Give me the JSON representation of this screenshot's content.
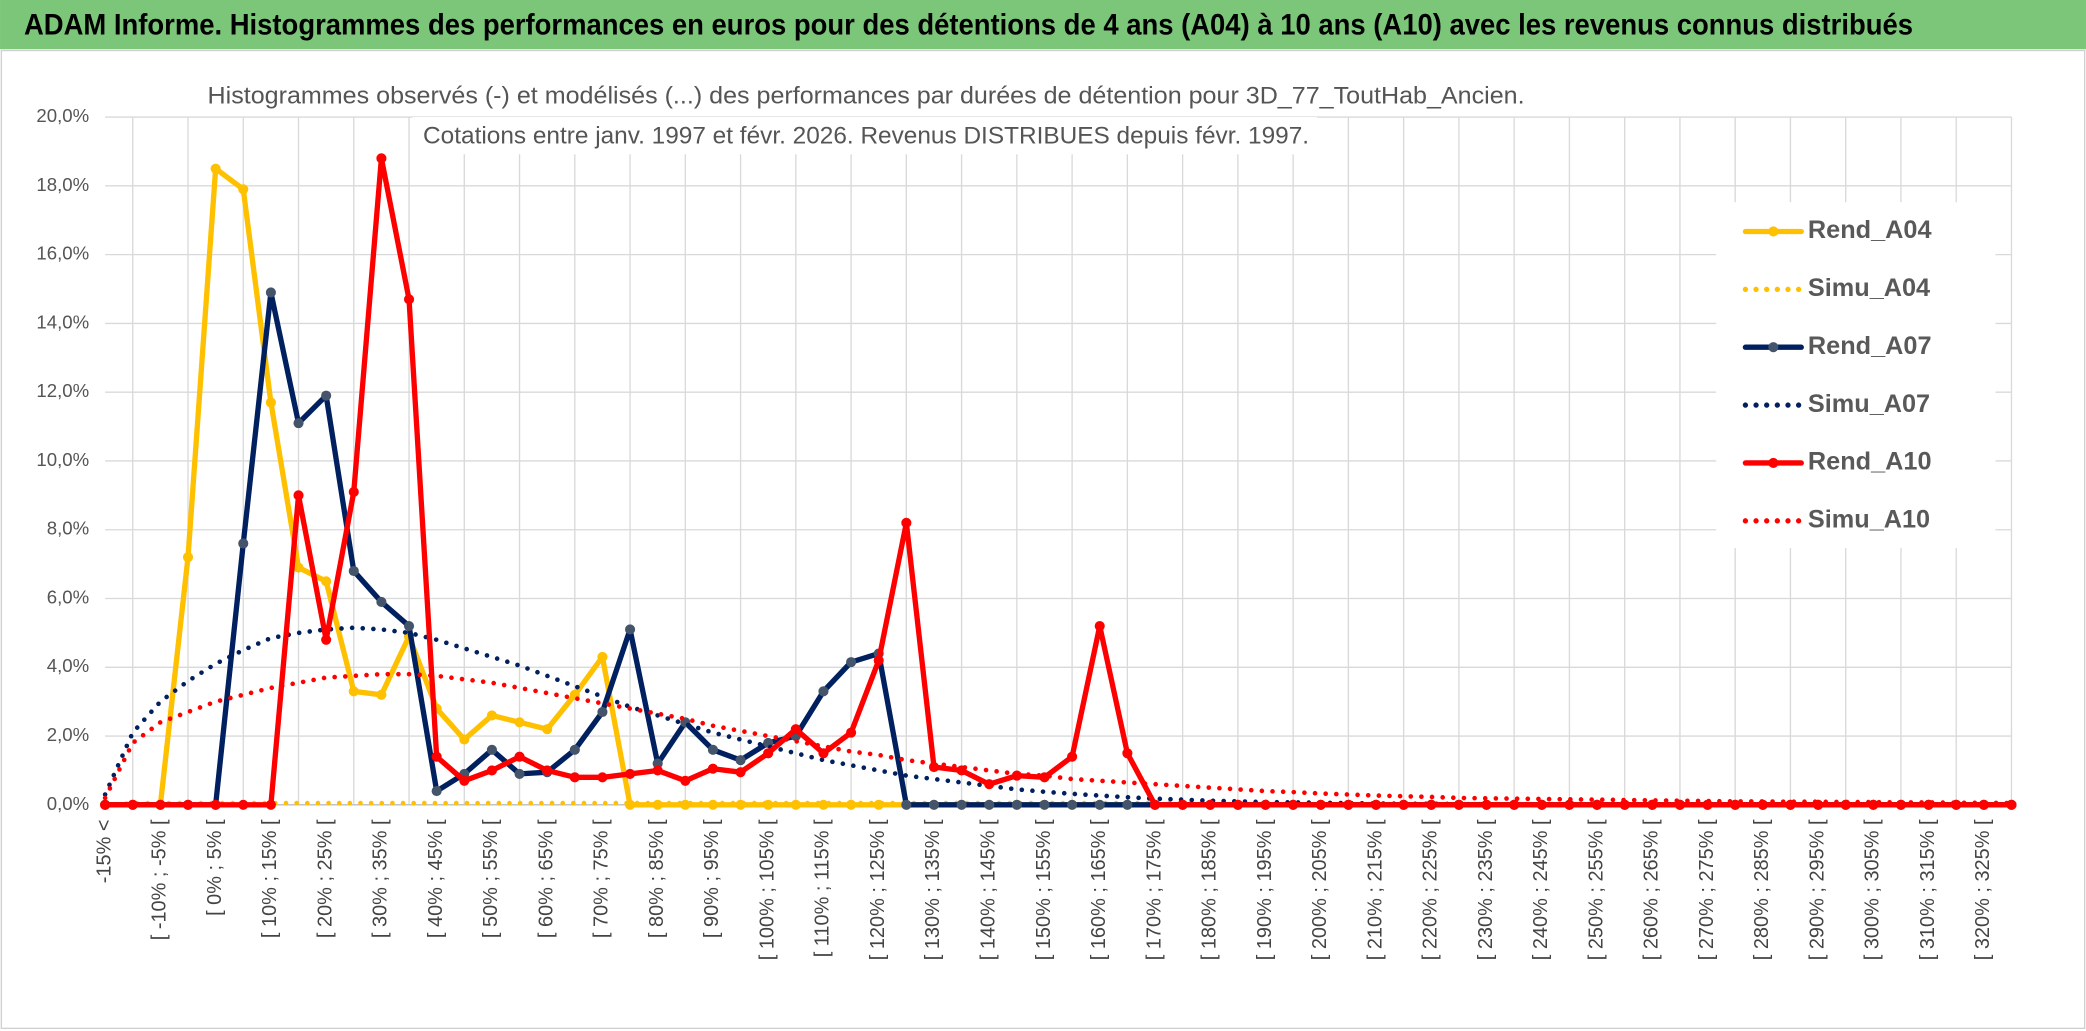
{
  "header": {
    "title": "ADAM Informe. Histogrammes des performances en euros pour des détentions de 4 ans (A04) à 10 ans (A10) avec les revenus connus distribués"
  },
  "chart_data": {
    "type": "line",
    "title": "Histogrammes observés (-) et modélisés (...) des performances par durées de détention pour 3D_77_ToutHab_Ancien.",
    "subtitle": "Cotations entre janv. 1997 et févr. 2026. Revenus DISTRIBUES depuis févr. 1997.",
    "categories": [
      "-15% <",
      null,
      "[ -10% ; -5% [",
      null,
      "[ 0% ; 5% [",
      null,
      "[ 10% ; 15% [",
      null,
      "[ 20% ; 25% [",
      null,
      "[ 30% ; 35% [",
      null,
      "[ 40% ; 45% [",
      null,
      "[ 50% ; 55% [",
      null,
      "[ 60% ; 65% [",
      null,
      "[ 70% ; 75% [",
      null,
      "[ 80% ; 85% [",
      null,
      "[ 90% ; 95% [",
      null,
      "[ 100% ; 105% [",
      null,
      "[ 110% ; 115% [",
      null,
      "[ 120% ; 125% [",
      null,
      "[ 130% ; 135% [",
      null,
      "[ 140% ; 145% [",
      null,
      "[ 150% ; 155% [",
      null,
      "[ 160% ; 165% [",
      null,
      "[ 170% ; 175% [",
      null,
      "[ 180% ; 185% [",
      null,
      "[ 190% ; 195% [",
      null,
      "[ 200% ; 205% [",
      null,
      "[ 210% ; 215% [",
      null,
      "[ 220% ; 225% [",
      null,
      "[ 230% ; 235% [",
      null,
      "[ 240% ; 245% [",
      null,
      "[ 250% ; 255% [",
      null,
      "[ 260% ; 265% [",
      null,
      "[ 270% ; 275% [",
      null,
      "[ 280% ; 285% [",
      null,
      "[ 290% ; 295% [",
      null,
      "[ 300% ; 305% [",
      null,
      "[ 310% ; 315% [",
      null,
      "[ 320% ; 325% [",
      null
    ],
    "series": [
      {
        "name": "Rend_A04",
        "color": "#ffc000",
        "line_style": "solid",
        "values": [
          0,
          0,
          0,
          7.2,
          18.5,
          17.9,
          11.7,
          6.9,
          6.5,
          3.3,
          3.2,
          4.9,
          2.8,
          1.9,
          2.6,
          2.4,
          2.2,
          3.2,
          4.3,
          0,
          0,
          0,
          0,
          0,
          0,
          0,
          0,
          0,
          0,
          0,
          0,
          0,
          0,
          0,
          0,
          0,
          0,
          0,
          0,
          0,
          0,
          0,
          0,
          0,
          0,
          0,
          0,
          0,
          0,
          0,
          0,
          0,
          0,
          0,
          0,
          0,
          0,
          0,
          0,
          0,
          0,
          0,
          0,
          0,
          0,
          0,
          0,
          0,
          0,
          0
        ]
      },
      {
        "name": "Simu_A04",
        "color": "#ffc000",
        "line_style": "dotted",
        "values": [
          0,
          0.05,
          0.05,
          0.05,
          0.05,
          0.05,
          0.05,
          0.05,
          0.05,
          0.05,
          0.05,
          0.05,
          0.05,
          0.05,
          0.05,
          0.05,
          0.05,
          0.05,
          0.05,
          0.05,
          0.05,
          0.05,
          0.05,
          0.05,
          0.05,
          0.05,
          0.05,
          0.05,
          0.05,
          0.05,
          0.05,
          0.05,
          0.05,
          0.05,
          0.05,
          0.05,
          0.05,
          0.05,
          0.05,
          0.05,
          0.05,
          0.02,
          0.02,
          0.02,
          0.02,
          0.02,
          0.02,
          0.02,
          0.02,
          0.02,
          0.02,
          0.02,
          0.02,
          0.02,
          0.02,
          0.02,
          0.02,
          0.02,
          0.02,
          0.02,
          0.02,
          0.02,
          0.02,
          0.02,
          0.02,
          0.02,
          0.02,
          0.02,
          0.02,
          0.02
        ]
      },
      {
        "name": "Rend_A07",
        "color": "#002060",
        "line_style": "solid",
        "values": [
          0,
          0,
          0,
          0,
          0,
          7.6,
          14.9,
          11.1,
          11.9,
          6.8,
          5.9,
          5.2,
          0.4,
          0.9,
          1.6,
          0.9,
          0.95,
          1.6,
          2.7,
          5.1,
          1.2,
          2.4,
          1.6,
          1.3,
          1.8,
          2.0,
          3.3,
          4.15,
          4.4,
          0,
          0,
          0,
          0,
          0,
          0,
          0,
          0,
          0,
          0,
          0,
          0,
          0,
          0,
          0,
          0,
          0,
          0,
          0,
          0,
          0,
          0,
          0,
          0,
          0,
          0,
          0,
          0,
          0,
          0,
          0,
          0,
          0,
          0,
          0,
          0,
          0,
          0,
          0,
          0,
          0
        ]
      },
      {
        "name": "Simu_A07",
        "color": "#002060",
        "line_style": "dotted",
        "values": [
          0.3,
          2.1,
          3.0,
          3.6,
          4.1,
          4.5,
          4.85,
          5.0,
          5.1,
          5.15,
          5.1,
          5.0,
          4.8,
          4.55,
          4.3,
          4.05,
          3.75,
          3.45,
          3.15,
          2.85,
          2.6,
          2.35,
          2.1,
          1.9,
          1.7,
          1.5,
          1.3,
          1.15,
          1.0,
          0.85,
          0.75,
          0.65,
          0.55,
          0.45,
          0.38,
          0.32,
          0.27,
          0.22,
          0.18,
          0.15,
          0.12,
          0.1,
          0.08,
          0.07,
          0.06,
          0.05,
          0.04,
          0.03,
          0.03,
          0.02,
          0.02,
          0.01,
          0.01,
          0.01,
          0.01,
          0.01,
          0.01,
          0.01,
          0.01,
          0.01,
          0.01,
          0.01,
          0.01,
          0.01,
          0.01,
          0.01,
          0.01,
          0.01,
          0.01,
          0.01
        ]
      },
      {
        "name": "Rend_A10",
        "color": "#ff0000",
        "line_style": "solid",
        "values": [
          0,
          0,
          0,
          0,
          0,
          0,
          0,
          9.0,
          4.8,
          9.1,
          18.8,
          14.7,
          1.4,
          0.7,
          1.0,
          1.4,
          1.0,
          0.8,
          0.8,
          0.9,
          1.0,
          0.7,
          1.05,
          0.95,
          1.5,
          2.2,
          1.5,
          2.1,
          4.2,
          8.2,
          1.1,
          1.0,
          0.6,
          0.85,
          0.8,
          1.4,
          5.2,
          1.5,
          0,
          0,
          0,
          0,
          0,
          0,
          0,
          0,
          0,
          0,
          0,
          0,
          0,
          0,
          0,
          0,
          0,
          0,
          0,
          0,
          0,
          0,
          0,
          0,
          0,
          0,
          0,
          0,
          0,
          0,
          0,
          0
        ]
      },
      {
        "name": "Simu_A10",
        "color": "#ff0000",
        "line_style": "dotted",
        "values": [
          0.2,
          1.8,
          2.4,
          2.7,
          3.0,
          3.2,
          3.4,
          3.55,
          3.7,
          3.75,
          3.8,
          3.8,
          3.75,
          3.65,
          3.55,
          3.4,
          3.25,
          3.1,
          2.95,
          2.8,
          2.65,
          2.5,
          2.3,
          2.15,
          2.0,
          1.85,
          1.7,
          1.55,
          1.45,
          1.3,
          1.2,
          1.1,
          1.0,
          0.9,
          0.85,
          0.75,
          0.7,
          0.65,
          0.6,
          0.55,
          0.5,
          0.45,
          0.4,
          0.37,
          0.33,
          0.3,
          0.27,
          0.25,
          0.23,
          0.2,
          0.19,
          0.18,
          0.17,
          0.16,
          0.15,
          0.14,
          0.13,
          0.12,
          0.11,
          0.1,
          0.1,
          0.09,
          0.09,
          0.08,
          0.08,
          0.07,
          0.07,
          0.06,
          0.06,
          0.05
        ]
      }
    ],
    "ylim": [
      0,
      20
    ],
    "yticks": [
      {
        "value": 0,
        "label": "0,0%"
      },
      {
        "value": 2,
        "label": "2,0%"
      },
      {
        "value": 4,
        "label": "4,0%"
      },
      {
        "value": 6,
        "label": "6,0%"
      },
      {
        "value": 8,
        "label": "8,0%"
      },
      {
        "value": 10,
        "label": "10,0%"
      },
      {
        "value": 12,
        "label": "12,0%"
      },
      {
        "value": 14,
        "label": "14,0%"
      },
      {
        "value": 16,
        "label": "16,0%"
      },
      {
        "value": 18,
        "label": "18,0%"
      },
      {
        "value": 20,
        "label": "20,0%"
      }
    ],
    "grid": true,
    "legend": "right"
  }
}
